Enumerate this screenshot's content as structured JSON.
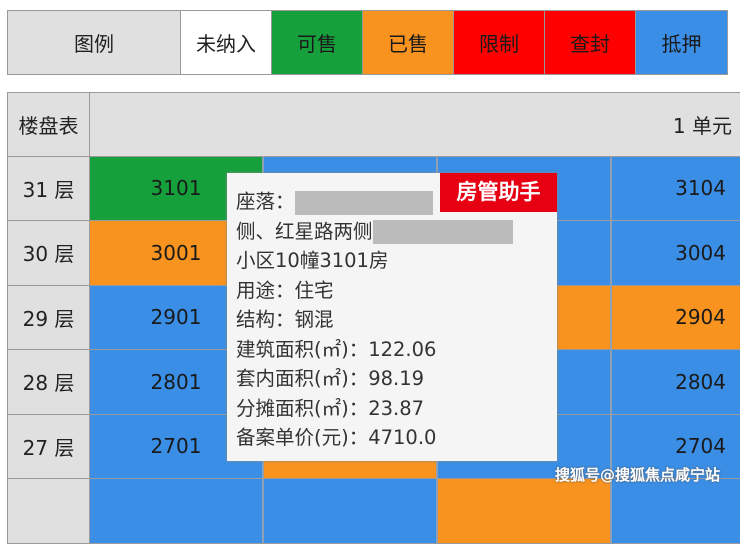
{
  "legend": {
    "title": "图例",
    "items": [
      {
        "label": "未纳入",
        "color": "#ffffff"
      },
      {
        "label": "可售",
        "color": "#16a03c"
      },
      {
        "label": "已售",
        "color": "#f7931e"
      },
      {
        "label": "限制",
        "color": "#ff0000"
      },
      {
        "label": "查封",
        "color": "#ff0000"
      },
      {
        "label": "抵押",
        "color": "#3a8ee6"
      }
    ]
  },
  "table": {
    "corner": "楼盘表",
    "unit": "1 单元",
    "rows": [
      {
        "floor": "31 层",
        "cells": [
          {
            "no": "3101",
            "color": "#16a03c"
          },
          {
            "no": "",
            "color": "#3a8ee6"
          },
          {
            "no": "",
            "color": "#3a8ee6"
          },
          {
            "no": "3104",
            "color": "#3a8ee6"
          }
        ]
      },
      {
        "floor": "30 层",
        "cells": [
          {
            "no": "3001",
            "color": "#f7931e"
          },
          {
            "no": "",
            "color": "#3a8ee6"
          },
          {
            "no": "",
            "color": "#3a8ee6"
          },
          {
            "no": "3004",
            "color": "#3a8ee6"
          }
        ]
      },
      {
        "floor": "29 层",
        "cells": [
          {
            "no": "2901",
            "color": "#3a8ee6"
          },
          {
            "no": "",
            "color": "#3a8ee6"
          },
          {
            "no": "",
            "color": "#f7931e"
          },
          {
            "no": "2904",
            "color": "#f7931e"
          }
        ]
      },
      {
        "floor": "28 层",
        "cells": [
          {
            "no": "2801",
            "color": "#3a8ee6"
          },
          {
            "no": "",
            "color": "#3a8ee6"
          },
          {
            "no": "",
            "color": "#3a8ee6"
          },
          {
            "no": "2804",
            "color": "#3a8ee6"
          }
        ]
      },
      {
        "floor": "27 层",
        "cells": [
          {
            "no": "2701",
            "color": "#3a8ee6"
          },
          {
            "no": "",
            "color": "#f7931e"
          },
          {
            "no": "",
            "color": "#3a8ee6"
          },
          {
            "no": "2704",
            "color": "#3a8ee6"
          }
        ]
      },
      {
        "floor": "",
        "cells": [
          {
            "no": "",
            "color": "#3a8ee6"
          },
          {
            "no": "",
            "color": "#3a8ee6"
          },
          {
            "no": "",
            "color": "#f7931e"
          },
          {
            "no": "",
            "color": "#3a8ee6"
          }
        ]
      }
    ]
  },
  "popup": {
    "badge": "房管助手",
    "location_label": "座落：",
    "line2": "侧、红星路两侧",
    "line3": "小区10幢3101房",
    "usage": "用途：住宅",
    "structure": "结构：钢混",
    "building_area": "建筑面积(㎡)：122.06",
    "inner_area": "套内面积(㎡)：98.19",
    "shared_area": "分摊面积(㎡)：23.87",
    "unit_price": "备案单价(元)：4710.0"
  },
  "watermark": "搜狐号@搜狐焦点咸宁站"
}
